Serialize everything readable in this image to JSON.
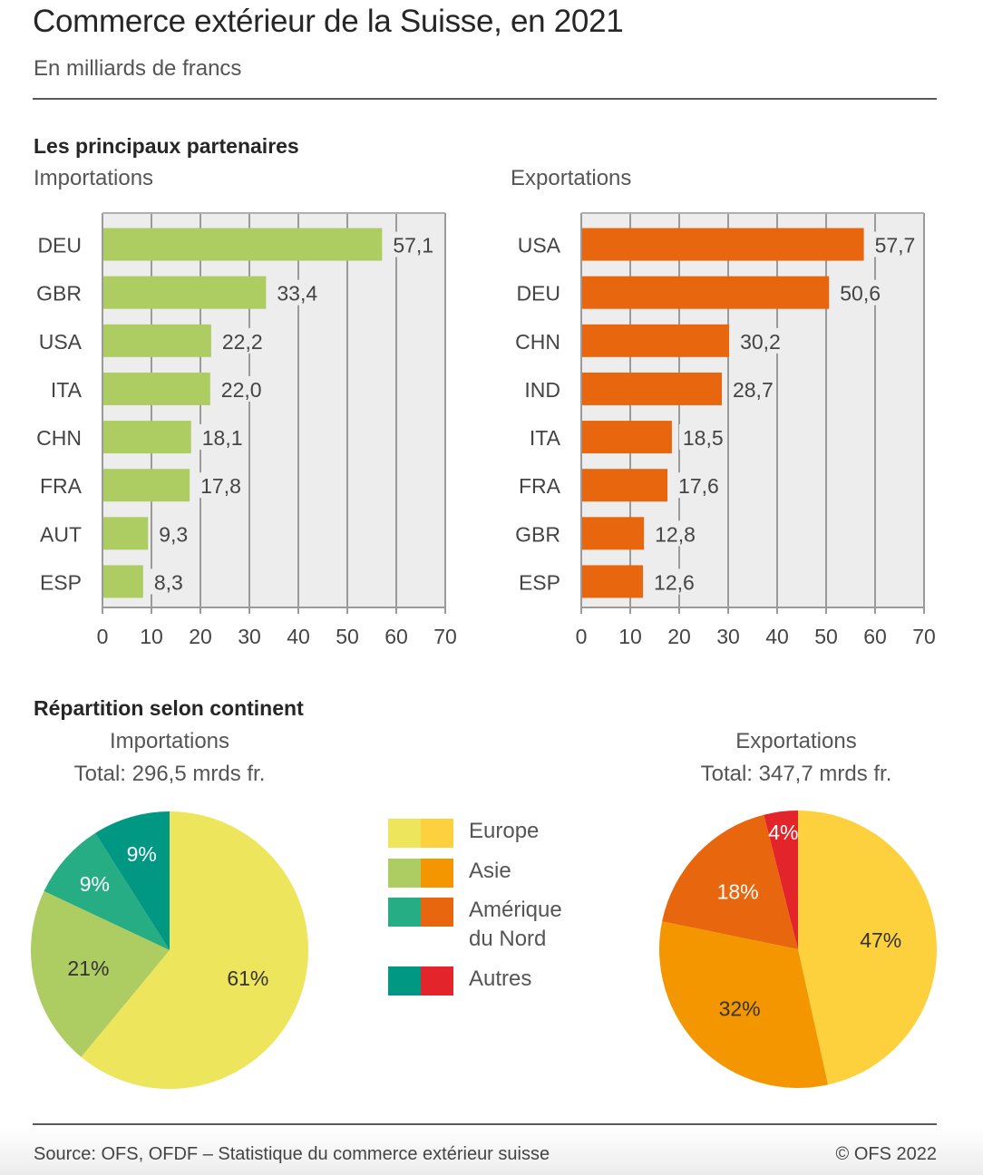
{
  "header": {
    "title": "Commerce extérieur de la Suisse, en 2021",
    "subtitle": "En milliards de francs"
  },
  "partners_section": {
    "heading": "Les principaux partenaires",
    "imports_label": "Importations",
    "exports_label": "Exportations"
  },
  "continent_section": {
    "heading": "Répartition selon continent",
    "imports_title": "Importations",
    "imports_total": "Total: 296,5 mrds fr.",
    "exports_title": "Exportations",
    "exports_total": "Total: 347,7 mrds fr."
  },
  "legend": [
    {
      "label": "Europe",
      "colors": [
        "#ede55b",
        "#fdd13d"
      ]
    },
    {
      "label": "Asie",
      "colors": [
        "#adcc62",
        "#f39600"
      ]
    },
    {
      "label": "Amérique du Nord",
      "label_lines": [
        "Amérique",
        "du Nord"
      ],
      "colors": [
        "#27ad83",
        "#e8660d"
      ]
    },
    {
      "label": "Autres",
      "colors": [
        "#009883",
        "#e3242b"
      ]
    }
  ],
  "footer": {
    "source": "Source: OFS, OFDF – Statistique du commerce extérieur suisse",
    "copyright": "© OFS 2022"
  },
  "chart_data": [
    {
      "id": "imports-bar",
      "type": "bar",
      "orientation": "horizontal",
      "title": "Importations",
      "categories": [
        "DEU",
        "GBR",
        "USA",
        "ITA",
        "CHN",
        "FRA",
        "AUT",
        "ESP"
      ],
      "values": [
        57.1,
        33.4,
        22.2,
        22.0,
        18.1,
        17.8,
        9.3,
        8.3
      ],
      "value_labels": [
        "57,1",
        "33,4",
        "22,2",
        "22,0",
        "18,1",
        "17,8",
        "9,3",
        "8,3"
      ],
      "xlim": [
        0,
        70
      ],
      "xticks": [
        0,
        10,
        20,
        30,
        40,
        50,
        60,
        70
      ],
      "xlabel": "",
      "ylabel": "",
      "grid": true,
      "color": "#adcc62"
    },
    {
      "id": "exports-bar",
      "type": "bar",
      "orientation": "horizontal",
      "title": "Exportations",
      "categories": [
        "USA",
        "DEU",
        "CHN",
        "IND",
        "ITA",
        "FRA",
        "GBR",
        "ESP"
      ],
      "values": [
        57.7,
        50.6,
        30.2,
        28.7,
        18.5,
        17.6,
        12.8,
        12.6
      ],
      "value_labels": [
        "57,7",
        "50,6",
        "30,2",
        "28,7",
        "18,5",
        "17,6",
        "12,8",
        "12,6"
      ],
      "xlim": [
        0,
        70
      ],
      "xticks": [
        0,
        10,
        20,
        30,
        40,
        50,
        60,
        70
      ],
      "xlabel": "",
      "ylabel": "",
      "grid": true,
      "color": "#e8660d"
    },
    {
      "id": "imports-pie",
      "type": "pie",
      "title": "Importations",
      "subtitle": "Total: 296,5 mrds fr.",
      "categories": [
        "Europe",
        "Asie",
        "Amérique du Nord",
        "Autres"
      ],
      "values": [
        61,
        21,
        9,
        9
      ],
      "value_labels": [
        "61%",
        "21%",
        "9%",
        "9%"
      ],
      "colors": [
        "#ede55b",
        "#adcc62",
        "#27ad83",
        "#009883"
      ],
      "label_colors": [
        "#333333",
        "#333333",
        "#ffffff",
        "#ffffff"
      ],
      "start": "12 o'clock",
      "direction": "clockwise"
    },
    {
      "id": "exports-pie",
      "type": "pie",
      "title": "Exportations",
      "subtitle": "Total: 347,7 mrds fr.",
      "categories": [
        "Europe",
        "Asie",
        "Amérique du Nord",
        "Autres"
      ],
      "values": [
        47,
        32,
        18,
        4
      ],
      "value_labels": [
        "47%",
        "32%",
        "18%",
        "4%"
      ],
      "colors": [
        "#fdd13d",
        "#f39600",
        "#e8660d",
        "#e3242b"
      ],
      "label_colors": [
        "#333333",
        "#333333",
        "#ffffff",
        "#ffffff"
      ],
      "start": "12 o'clock",
      "direction": "clockwise"
    }
  ]
}
